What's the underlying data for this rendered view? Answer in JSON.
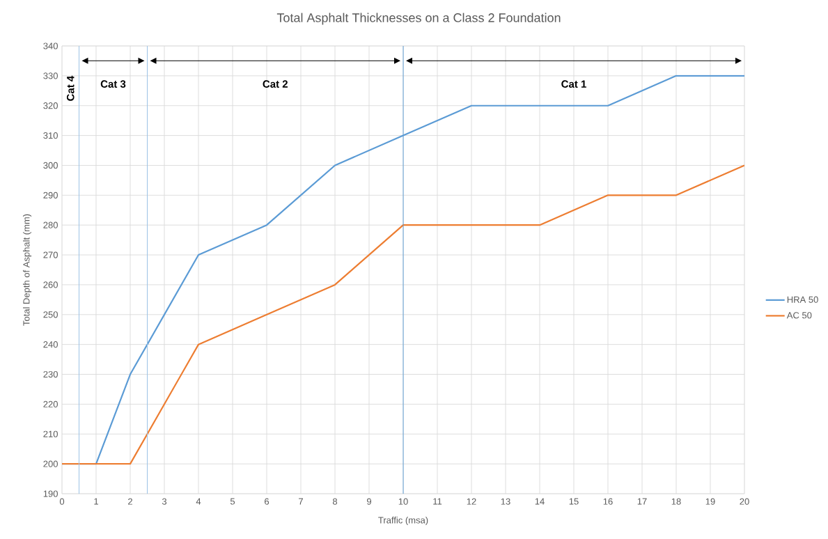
{
  "chart_data": {
    "type": "line",
    "title": "Total Asphalt Thicknesses on a Class 2 Foundation",
    "xlabel": "Traffic (msa)",
    "ylabel": "Total Depth of Asphalt (mm)",
    "x": [
      0,
      1,
      2,
      4,
      6,
      8,
      10,
      12,
      14,
      16,
      18,
      20
    ],
    "series": [
      {
        "name": "HRA 50",
        "color": "#5b9bd5",
        "values": [
          200,
          200,
          230,
          270,
          280,
          300,
          310,
          320,
          320,
          320,
          330,
          330
        ]
      },
      {
        "name": "AC 50",
        "color": "#ed7d31",
        "values": [
          200,
          200,
          200,
          240,
          250,
          260,
          280,
          280,
          280,
          290,
          290,
          300
        ]
      }
    ],
    "xlim": [
      0,
      20
    ],
    "ylim": [
      190,
      340
    ],
    "xticks": [
      0,
      1,
      2,
      3,
      4,
      5,
      6,
      7,
      8,
      9,
      10,
      11,
      12,
      13,
      14,
      15,
      16,
      17,
      18,
      19,
      20
    ],
    "yticks": [
      190,
      200,
      210,
      220,
      230,
      240,
      250,
      260,
      270,
      280,
      290,
      300,
      310,
      320,
      330,
      340
    ],
    "grid": true,
    "legend": "right",
    "marker": "none",
    "line_style": "solid",
    "ref_lines": [
      {
        "axis": "x",
        "value": 0.5,
        "color": "#9dc3e6"
      },
      {
        "axis": "x",
        "value": 2.5,
        "color": "#9dc3e6"
      },
      {
        "axis": "x",
        "value": 10,
        "color": "#5b9bd5"
      }
    ],
    "annotations": [
      "Cat 4",
      "Cat 3",
      "Cat 2",
      "Cat 1"
    ]
  }
}
